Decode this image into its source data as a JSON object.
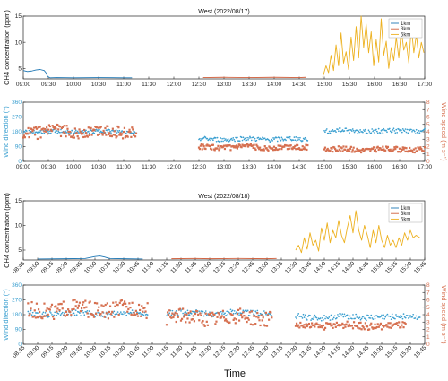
{
  "figure": {
    "xlabel": "Time",
    "colors": {
      "1km": "#1f77b4",
      "3km": "#d1603d",
      "5km": "#edb120",
      "wd": "#3a9fd0",
      "ws": "#d67050",
      "axis": "#222222"
    }
  },
  "chart_data": [
    {
      "type": "line",
      "title": "West (2022/08/17)",
      "ylabel": "CH4 concentration (ppm)",
      "ylim": [
        3,
        15
      ],
      "yticks": [
        5,
        10,
        15
      ],
      "xlim": [
        "09:00",
        "17:00"
      ],
      "xticks": [
        "09:00",
        "09:30",
        "10:00",
        "10:30",
        "11:00",
        "11:30",
        "12:00",
        "12:30",
        "13:00",
        "13:30",
        "14:00",
        "14:30",
        "15:00",
        "15:30",
        "16:00",
        "16:30",
        "17:00"
      ],
      "legend": {
        "position": "top-right",
        "entries": [
          "1km",
          "3km",
          "5km"
        ]
      },
      "series": [
        {
          "name": "1km",
          "points": [
            [
              "09:00",
              4.6
            ],
            [
              "09:05",
              4.4
            ],
            [
              "09:10",
              4.5
            ],
            [
              "09:15",
              4.7
            ],
            [
              "09:20",
              4.8
            ],
            [
              "09:25",
              4.6
            ],
            [
              "09:27",
              4.2
            ],
            [
              "09:29",
              3.5
            ],
            [
              "09:32",
              3.2
            ],
            [
              "09:40",
              3.25
            ],
            [
              "10:00",
              3.2
            ],
            [
              "10:30",
              3.25
            ],
            [
              "11:00",
              3.2
            ],
            [
              "11:10",
              3.2
            ]
          ]
        },
        {
          "name": "3km",
          "points": [
            [
              "12:35",
              3.25
            ],
            [
              "13:00",
              3.3
            ],
            [
              "13:30",
              3.25
            ],
            [
              "14:00",
              3.3
            ],
            [
              "14:30",
              3.25
            ],
            [
              "14:38",
              3.3
            ]
          ]
        },
        {
          "name": "5km",
          "points": [
            [
              "14:58",
              3.3
            ],
            [
              "15:02",
              5.5
            ],
            [
              "15:05",
              4.2
            ],
            [
              "15:08",
              7.5
            ],
            [
              "15:11",
              4.6
            ],
            [
              "15:14",
              9.5
            ],
            [
              "15:17",
              5.5
            ],
            [
              "15:20",
              11.8
            ],
            [
              "15:23",
              6.0
            ],
            [
              "15:26",
              8.2
            ],
            [
              "15:29",
              4.8
            ],
            [
              "15:32",
              11.0
            ],
            [
              "15:35",
              6.5
            ],
            [
              "15:38",
              13.0
            ],
            [
              "15:41",
              7.0
            ],
            [
              "15:44",
              15.0
            ],
            [
              "15:47",
              9.0
            ],
            [
              "15:50",
              13.5
            ],
            [
              "15:53",
              8.0
            ],
            [
              "15:56",
              12.0
            ],
            [
              "15:59",
              5.5
            ],
            [
              "16:02",
              10.5
            ],
            [
              "16:05",
              6.2
            ],
            [
              "16:08",
              14.5
            ],
            [
              "16:11",
              7.5
            ],
            [
              "16:14",
              10.2
            ],
            [
              "16:17",
              5.0
            ],
            [
              "16:20",
              9.0
            ],
            [
              "16:23",
              6.5
            ],
            [
              "16:26",
              11.0
            ],
            [
              "16:29",
              7.0
            ],
            [
              "16:32",
              12.5
            ],
            [
              "16:35",
              8.5
            ],
            [
              "16:38",
              10.0
            ],
            [
              "16:41",
              6.0
            ],
            [
              "16:44",
              13.0
            ],
            [
              "16:47",
              8.0
            ],
            [
              "16:50",
              11.5
            ],
            [
              "16:53",
              7.0
            ],
            [
              "16:56",
              10.0
            ],
            [
              "16:59",
              8.0
            ]
          ]
        }
      ]
    },
    {
      "type": "scatter",
      "ylabel_left": "Wind direction (°)",
      "ylabel_right": "Wind speed (m s⁻¹)",
      "ylim_left": [
        0,
        360
      ],
      "yticks_left": [
        0,
        90,
        180,
        270,
        360
      ],
      "ylim_right": [
        0,
        8
      ],
      "yticks_right": [
        0,
        1,
        2,
        3,
        4,
        5,
        6,
        7,
        8
      ],
      "xlim": [
        "09:00",
        "17:00"
      ],
      "xticks": [
        "09:00",
        "09:30",
        "10:00",
        "10:30",
        "11:00",
        "11:30",
        "12:00",
        "12:30",
        "13:00",
        "13:30",
        "14:00",
        "14:30",
        "15:00",
        "15:30",
        "16:00",
        "16:30",
        "17:00"
      ],
      "series": [
        {
          "name": "Wind direction",
          "axis": "left",
          "segments": [
            {
              "start": "09:00",
              "end": "11:15",
              "step": 1,
              "mean": 180,
              "amp": 12
            },
            {
              "start": "12:30",
              "end": "14:40",
              "step": 1,
              "mean": 135,
              "amp": 14
            },
            {
              "start": "15:00",
              "end": "17:00",
              "step": 1,
              "mean": 185,
              "amp": 14
            }
          ]
        },
        {
          "name": "Wind speed",
          "axis": "right",
          "segments": [
            {
              "start": "09:00",
              "end": "11:15",
              "step": 1,
              "mean": 4.0,
              "amp": 0.8
            },
            {
              "start": "12:30",
              "end": "14:40",
              "step": 1,
              "mean": 1.9,
              "amp": 0.35
            },
            {
              "start": "15:00",
              "end": "17:00",
              "step": 1,
              "mean": 1.6,
              "amp": 0.35
            }
          ]
        }
      ]
    },
    {
      "type": "line",
      "title": "West (2022/08/18)",
      "ylabel": "CH4 concentration (ppm)",
      "ylim": [
        3,
        15
      ],
      "yticks": [
        5,
        10,
        15
      ],
      "xlim": [
        "08:45",
        "15:45"
      ],
      "xticks": [
        "08:45",
        "09:00",
        "09:15",
        "09:30",
        "09:45",
        "10:00",
        "10:15",
        "10:30",
        "10:45",
        "11:00",
        "11:15",
        "11:30",
        "11:45",
        "12:00",
        "12:15",
        "12:30",
        "12:45",
        "13:00",
        "13:15",
        "13:30",
        "13:45",
        "14:00",
        "14:15",
        "14:30",
        "14:45",
        "15:00",
        "15:15",
        "15:30",
        "15:45"
      ],
      "legend": {
        "position": "top-right",
        "entries": [
          "1km",
          "3km",
          "5km"
        ]
      },
      "series": [
        {
          "name": "1km",
          "points": [
            [
              "09:00",
              3.2
            ],
            [
              "09:30",
              3.25
            ],
            [
              "09:50",
              3.3
            ],
            [
              "10:00",
              3.7
            ],
            [
              "10:05",
              3.8
            ],
            [
              "10:10",
              3.6
            ],
            [
              "10:15",
              3.3
            ],
            [
              "10:30",
              3.25
            ],
            [
              "10:50",
              3.2
            ]
          ]
        },
        {
          "name": "3km",
          "points": [
            [
              "11:20",
              3.25
            ],
            [
              "11:45",
              3.3
            ],
            [
              "12:00",
              3.25
            ],
            [
              "12:30",
              3.3
            ],
            [
              "13:00",
              3.25
            ],
            [
              "13:10",
              3.3
            ]
          ]
        },
        {
          "name": "5km",
          "points": [
            [
              "13:30",
              5.0
            ],
            [
              "13:33",
              6.0
            ],
            [
              "13:36",
              4.5
            ],
            [
              "13:39",
              7.5
            ],
            [
              "13:42",
              5.2
            ],
            [
              "13:45",
              8.5
            ],
            [
              "13:48",
              6.0
            ],
            [
              "13:51",
              7.0
            ],
            [
              "13:54",
              4.8
            ],
            [
              "13:57",
              9.5
            ],
            [
              "14:00",
              7.0
            ],
            [
              "14:03",
              10.5
            ],
            [
              "14:06",
              6.5
            ],
            [
              "14:09",
              9.0
            ],
            [
              "14:12",
              7.5
            ],
            [
              "14:15",
              11.0
            ],
            [
              "14:18",
              8.0
            ],
            [
              "14:21",
              6.5
            ],
            [
              "14:24",
              9.5
            ],
            [
              "14:27",
              12.0
            ],
            [
              "14:30",
              8.5
            ],
            [
              "14:33",
              13.0
            ],
            [
              "14:36",
              9.0
            ],
            [
              "14:39",
              7.0
            ],
            [
              "14:42",
              10.0
            ],
            [
              "14:45",
              8.0
            ],
            [
              "14:48",
              5.5
            ],
            [
              "14:51",
              9.0
            ],
            [
              "14:54",
              6.5
            ],
            [
              "14:57",
              10.0
            ],
            [
              "15:00",
              7.0
            ],
            [
              "15:03",
              5.5
            ],
            [
              "15:06",
              8.0
            ],
            [
              "15:09",
              6.0
            ],
            [
              "15:12",
              7.0
            ],
            [
              "15:15",
              5.5
            ],
            [
              "15:18",
              7.5
            ],
            [
              "15:21",
              6.0
            ],
            [
              "15:24",
              8.5
            ],
            [
              "15:27",
              7.0
            ],
            [
              "15:30",
              9.0
            ],
            [
              "15:33",
              7.5
            ],
            [
              "15:36",
              8.0
            ],
            [
              "15:40",
              7.5
            ]
          ]
        }
      ]
    },
    {
      "type": "scatter",
      "ylabel_left": "Wind direction (°)",
      "ylabel_right": "Wind speed (m s⁻¹)",
      "ylim_left": [
        0,
        360
      ],
      "yticks_left": [
        0,
        90,
        180,
        270,
        360
      ],
      "ylim_right": [
        0,
        8
      ],
      "yticks_right": [
        0,
        1,
        2,
        3,
        4,
        5,
        6,
        7,
        8
      ],
      "xlim": [
        "08:45",
        "15:45"
      ],
      "xticks": [
        "08:45",
        "09:00",
        "09:15",
        "09:30",
        "09:45",
        "10:00",
        "10:15",
        "10:30",
        "10:45",
        "11:00",
        "11:15",
        "11:30",
        "11:45",
        "12:00",
        "12:15",
        "12:30",
        "12:45",
        "13:00",
        "13:15",
        "13:30",
        "13:45",
        "14:00",
        "14:15",
        "14:30",
        "14:45",
        "15:00",
        "15:15",
        "15:30",
        "15:45"
      ],
      "series": [
        {
          "name": "Wind direction",
          "axis": "left",
          "segments": [
            {
              "start": "08:50",
              "end": "10:55",
              "step": 1,
              "mean": 185,
              "amp": 18
            },
            {
              "start": "11:15",
              "end": "13:05",
              "step": 1,
              "mean": 190,
              "amp": 18
            },
            {
              "start": "13:30",
              "end": "15:40",
              "step": 1,
              "mean": 165,
              "amp": 18
            }
          ]
        },
        {
          "name": "Wind speed",
          "axis": "right",
          "segments": [
            {
              "start": "08:50",
              "end": "10:55",
              "step": 1,
              "mean": 4.7,
              "amp": 1.1
            },
            {
              "start": "11:15",
              "end": "13:05",
              "step": 1,
              "mean": 3.6,
              "amp": 1.0
            },
            {
              "start": "13:30",
              "end": "15:25",
              "step": 1,
              "mean": 2.5,
              "amp": 0.45
            }
          ]
        }
      ]
    }
  ]
}
